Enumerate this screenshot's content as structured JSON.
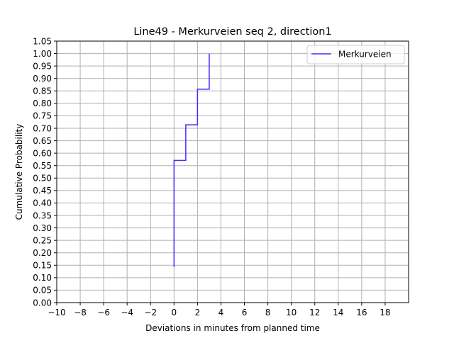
{
  "chart_data": {
    "type": "line",
    "step": "post",
    "title": "Line49 - Merkurveien seq 2, direction1",
    "xlabel": "Deviations in minutes from planned time",
    "ylabel": "Cumulative Probability",
    "xlim": [
      -10,
      20
    ],
    "ylim": [
      0,
      1.05
    ],
    "xticks": [
      -10,
      -8,
      -6,
      -4,
      -2,
      0,
      2,
      4,
      6,
      8,
      10,
      12,
      14,
      16,
      18
    ],
    "yticks": [
      0.0,
      0.05,
      0.1,
      0.15,
      0.2,
      0.25,
      0.3,
      0.35,
      0.4,
      0.45,
      0.5,
      0.55,
      0.6,
      0.65,
      0.7,
      0.75,
      0.8,
      0.85,
      0.9,
      0.95,
      1.0,
      1.05
    ],
    "grid": true,
    "legend_position": "top-right",
    "series": [
      {
        "name": "Merkurveien",
        "color": "#4a2bff",
        "points": [
          {
            "x": 0,
            "y": 0.143
          },
          {
            "x": 0,
            "y": 0.571
          },
          {
            "x": 1,
            "y": 0.571
          },
          {
            "x": 1,
            "y": 0.714
          },
          {
            "x": 2,
            "y": 0.714
          },
          {
            "x": 2,
            "y": 0.857
          },
          {
            "x": 3,
            "y": 0.857
          },
          {
            "x": 3,
            "y": 1.0
          }
        ]
      }
    ]
  },
  "colors": {
    "grid": "#b0b0b0",
    "axes": "#000000",
    "background": "#ffffff"
  }
}
